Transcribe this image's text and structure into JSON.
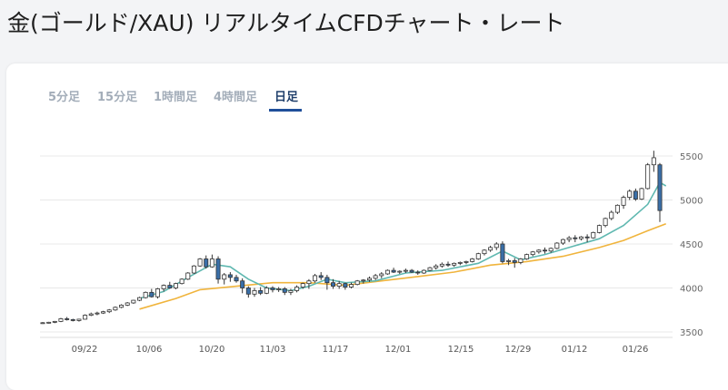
{
  "page_title": "金(ゴールド/XAU) リアルタイムCFDチャート・レート",
  "tabs": [
    {
      "label": "5分足",
      "active": false
    },
    {
      "label": "15分足",
      "active": false
    },
    {
      "label": "1時間足",
      "active": false
    },
    {
      "label": "4時間足",
      "active": false
    },
    {
      "label": "日足",
      "active": true
    }
  ],
  "colors": {
    "accent": "#1f4f9a",
    "ma_short": "#5fb8b0",
    "ma_long": "#f0b43c",
    "candle_down": "#3a6fa8",
    "candle_up": "#ffffff",
    "candle_line": "#333333",
    "grid": "#e8e8e8"
  },
  "chart_data": {
    "type": "candlestick",
    "ylim": [
      3500,
      5600
    ],
    "yticks": [
      "3500",
      "4000",
      "4500",
      "5000",
      "5500"
    ],
    "xtick_labels": [
      "09/22",
      "10/06",
      "10/20",
      "11/03",
      "11/17",
      "12/01",
      "12/15",
      "12/29",
      "01/12",
      "01/26"
    ],
    "candles": [
      [
        3600,
        3612,
        3592,
        3605
      ],
      [
        3605,
        3615,
        3596,
        3610
      ],
      [
        3610,
        3625,
        3600,
        3620
      ],
      [
        3620,
        3660,
        3612,
        3650
      ],
      [
        3650,
        3670,
        3630,
        3640
      ],
      [
        3640,
        3650,
        3620,
        3630
      ],
      [
        3630,
        3650,
        3618,
        3645
      ],
      [
        3645,
        3700,
        3640,
        3690
      ],
      [
        3690,
        3720,
        3680,
        3705
      ],
      [
        3705,
        3730,
        3690,
        3715
      ],
      [
        3715,
        3740,
        3705,
        3730
      ],
      [
        3730,
        3760,
        3715,
        3750
      ],
      [
        3750,
        3790,
        3740,
        3780
      ],
      [
        3780,
        3815,
        3770,
        3805
      ],
      [
        3805,
        3840,
        3795,
        3830
      ],
      [
        3830,
        3865,
        3820,
        3860
      ],
      [
        3860,
        3900,
        3850,
        3890
      ],
      [
        3890,
        3960,
        3880,
        3950
      ],
      [
        3950,
        3990,
        3890,
        3900
      ],
      [
        3900,
        4000,
        3880,
        3990
      ],
      [
        3990,
        4040,
        3960,
        4030
      ],
      [
        4030,
        4070,
        3990,
        4000
      ],
      [
        4000,
        4060,
        3985,
        4050
      ],
      [
        4050,
        4110,
        4040,
        4100
      ],
      [
        4100,
        4180,
        4090,
        4170
      ],
      [
        4170,
        4260,
        4160,
        4250
      ],
      [
        4250,
        4340,
        4240,
        4330
      ],
      [
        4330,
        4370,
        4220,
        4240
      ],
      [
        4240,
        4380,
        4230,
        4330
      ],
      [
        4330,
        4360,
        4050,
        4100
      ],
      [
        4100,
        4170,
        4040,
        4150
      ],
      [
        4150,
        4180,
        4070,
        4120
      ],
      [
        4120,
        4150,
        4060,
        4080
      ],
      [
        4080,
        4110,
        3940,
        4000
      ],
      [
        4000,
        4020,
        3890,
        3930
      ],
      [
        3930,
        4000,
        3900,
        3970
      ],
      [
        3970,
        4010,
        3920,
        3940
      ],
      [
        3940,
        4020,
        3930,
        4000
      ],
      [
        4000,
        4020,
        3950,
        3980
      ],
      [
        3980,
        4010,
        3955,
        3990
      ],
      [
        3990,
        4010,
        3920,
        3950
      ],
      [
        3950,
        3990,
        3920,
        3970
      ],
      [
        3970,
        4030,
        3950,
        4010
      ],
      [
        4010,
        4060,
        3990,
        4050
      ],
      [
        4050,
        4100,
        3990,
        4080
      ],
      [
        4080,
        4160,
        4060,
        4140
      ],
      [
        4140,
        4180,
        4090,
        4120
      ],
      [
        4120,
        4150,
        3980,
        4060
      ],
      [
        4060,
        4100,
        3990,
        4020
      ],
      [
        4020,
        4080,
        3990,
        4050
      ],
      [
        4050,
        4060,
        3980,
        4010
      ],
      [
        4010,
        4060,
        3995,
        4040
      ],
      [
        4040,
        4090,
        4030,
        4080
      ],
      [
        4080,
        4100,
        4050,
        4090
      ],
      [
        4090,
        4130,
        4070,
        4110
      ],
      [
        4110,
        4160,
        4090,
        4140
      ],
      [
        4140,
        4180,
        4110,
        4160
      ],
      [
        4160,
        4210,
        4150,
        4200
      ],
      [
        4200,
        4230,
        4170,
        4180
      ],
      [
        4180,
        4200,
        4160,
        4190
      ],
      [
        4190,
        4220,
        4170,
        4200
      ],
      [
        4200,
        4215,
        4170,
        4180
      ],
      [
        4180,
        4200,
        4150,
        4170
      ],
      [
        4170,
        4210,
        4160,
        4200
      ],
      [
        4200,
        4240,
        4190,
        4230
      ],
      [
        4230,
        4270,
        4210,
        4250
      ],
      [
        4250,
        4290,
        4230,
        4270
      ],
      [
        4270,
        4300,
        4240,
        4260
      ],
      [
        4260,
        4290,
        4240,
        4280
      ],
      [
        4280,
        4300,
        4260,
        4290
      ],
      [
        4290,
        4310,
        4270,
        4300
      ],
      [
        4300,
        4340,
        4290,
        4330
      ],
      [
        4330,
        4400,
        4320,
        4390
      ],
      [
        4390,
        4440,
        4370,
        4430
      ],
      [
        4430,
        4480,
        4410,
        4460
      ],
      [
        4460,
        4520,
        4430,
        4500
      ],
      [
        4500,
        4530,
        4280,
        4300
      ],
      [
        4300,
        4330,
        4260,
        4310
      ],
      [
        4310,
        4340,
        4230,
        4290
      ],
      [
        4290,
        4340,
        4270,
        4330
      ],
      [
        4330,
        4390,
        4320,
        4380
      ],
      [
        4380,
        4420,
        4360,
        4410
      ],
      [
        4410,
        4440,
        4390,
        4430
      ],
      [
        4430,
        4460,
        4390,
        4420
      ],
      [
        4420,
        4460,
        4400,
        4450
      ],
      [
        4450,
        4520,
        4440,
        4510
      ],
      [
        4510,
        4560,
        4490,
        4550
      ],
      [
        4550,
        4590,
        4520,
        4570
      ],
      [
        4570,
        4600,
        4520,
        4560
      ],
      [
        4560,
        4590,
        4540,
        4580
      ],
      [
        4580,
        4610,
        4520,
        4570
      ],
      [
        4570,
        4640,
        4560,
        4630
      ],
      [
        4630,
        4720,
        4620,
        4710
      ],
      [
        4710,
        4800,
        4690,
        4790
      ],
      [
        4790,
        4880,
        4770,
        4860
      ],
      [
        4860,
        4950,
        4840,
        4940
      ],
      [
        4940,
        5050,
        4900,
        5030
      ],
      [
        5030,
        5120,
        5000,
        5100
      ],
      [
        5100,
        5130,
        4990,
        5010
      ],
      [
        5010,
        5140,
        5000,
        5130
      ],
      [
        5130,
        5420,
        5120,
        5400
      ],
      [
        5400,
        5560,
        5320,
        5480
      ],
      [
        5400,
        5420,
        4750,
        4880
      ]
    ],
    "ma_short": [
      [
        16,
        3880
      ],
      [
        20,
        3960
      ],
      [
        24,
        4120
      ],
      [
        28,
        4270
      ],
      [
        31,
        4240
      ],
      [
        34,
        4100
      ],
      [
        37,
        4000
      ],
      [
        41,
        3970
      ],
      [
        44,
        4020
      ],
      [
        47,
        4100
      ],
      [
        50,
        4060
      ],
      [
        55,
        4080
      ],
      [
        60,
        4170
      ],
      [
        66,
        4200
      ],
      [
        72,
        4280
      ],
      [
        76,
        4420
      ],
      [
        79,
        4320
      ],
      [
        83,
        4380
      ],
      [
        88,
        4480
      ],
      [
        92,
        4560
      ],
      [
        96,
        4710
      ],
      [
        100,
        4950
      ],
      [
        102,
        5200
      ],
      [
        103,
        5160
      ]
    ],
    "ma_long": [
      [
        16,
        3760
      ],
      [
        22,
        3880
      ],
      [
        26,
        3980
      ],
      [
        32,
        4020
      ],
      [
        38,
        4060
      ],
      [
        44,
        4060
      ],
      [
        50,
        4030
      ],
      [
        56,
        4080
      ],
      [
        62,
        4130
      ],
      [
        68,
        4180
      ],
      [
        74,
        4260
      ],
      [
        80,
        4300
      ],
      [
        86,
        4360
      ],
      [
        92,
        4460
      ],
      [
        96,
        4540
      ],
      [
        100,
        4650
      ],
      [
        103,
        4730
      ]
    ]
  }
}
